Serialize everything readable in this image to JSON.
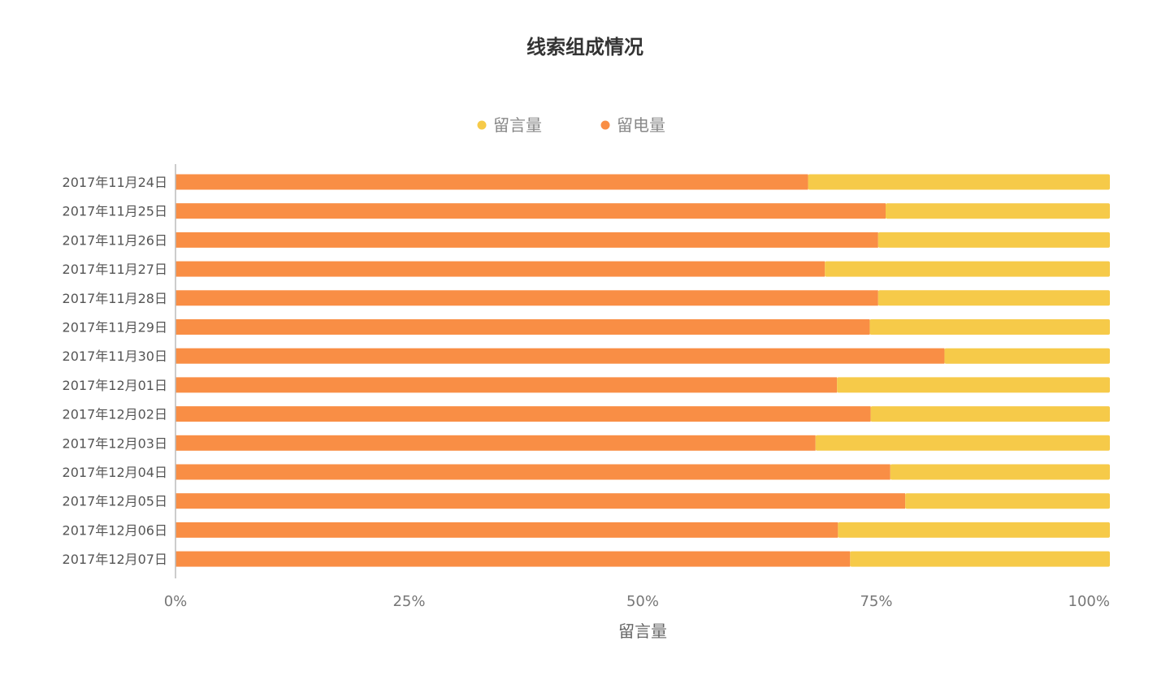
{
  "chart_data": {
    "type": "bar",
    "orientation": "horizontal",
    "stacked": true,
    "normalized": true,
    "title": "线索组成情况",
    "xlabel": "留言量",
    "ylabel": "",
    "xlim": [
      0,
      100
    ],
    "x_ticks": [
      "0%",
      "25%",
      "50%",
      "75%",
      "100%"
    ],
    "legend_position": "top-center",
    "grid": false,
    "categories": [
      "2017年11月24日",
      "2017年11月25日",
      "2017年11月26日",
      "2017年11月27日",
      "2017年11月28日",
      "2017年11月29日",
      "2017年11月30日",
      "2017年12月01日",
      "2017年12月02日",
      "2017年12月03日",
      "2017年12月04日",
      "2017年12月05日",
      "2017年12月06日",
      "2017年12月07日"
    ],
    "series": [
      {
        "name": "留电量",
        "color": "#F98E45",
        "values": [
          67.7,
          76.0,
          75.2,
          69.5,
          75.2,
          74.3,
          82.3,
          70.8,
          74.4,
          68.5,
          76.5,
          78.1,
          70.9,
          72.2
        ]
      },
      {
        "name": "留言量",
        "color": "#F6CA49",
        "values": [
          32.3,
          24.0,
          24.8,
          30.5,
          24.8,
          25.7,
          17.7,
          29.2,
          25.6,
          31.5,
          23.5,
          21.9,
          29.1,
          27.8
        ]
      }
    ],
    "legend": [
      {
        "name": "留言量",
        "color": "#F6CA49"
      },
      {
        "name": "留电量",
        "color": "#F98E45"
      }
    ],
    "axis_color": "#BBBBBB"
  }
}
